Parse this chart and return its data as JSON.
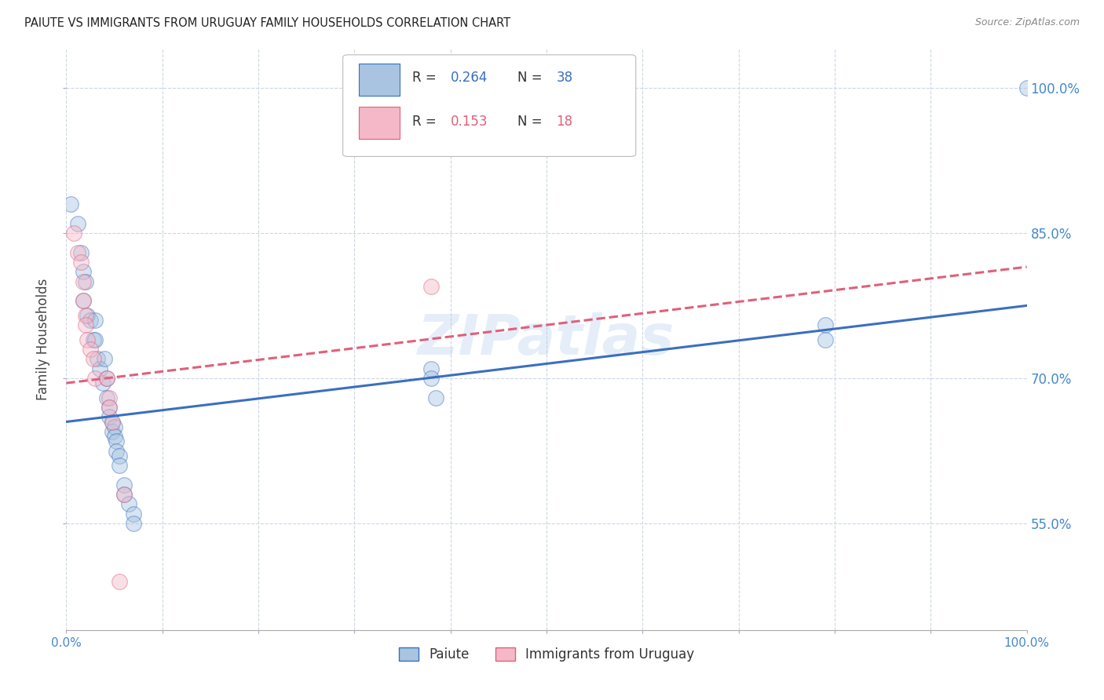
{
  "title": "PAIUTE VS IMMIGRANTS FROM URUGUAY FAMILY HOUSEHOLDS CORRELATION CHART",
  "source": "Source: ZipAtlas.com",
  "ylabel": "Family Households",
  "legend_r1": "R = 0.264",
  "legend_n1": "N = 38",
  "legend_r2": "R = 0.153",
  "legend_n2": "N = 18",
  "paiute_color": "#a8c4e0",
  "uruguay_color": "#f5b8c8",
  "line1_color": "#3a6fc0",
  "line2_color": "#e0607a",
  "watermark": "ZIPatlas",
  "paiute_points": [
    [
      0.005,
      0.88
    ],
    [
      0.012,
      0.86
    ],
    [
      0.015,
      0.83
    ],
    [
      0.018,
      0.81
    ],
    [
      0.018,
      0.78
    ],
    [
      0.02,
      0.8
    ],
    [
      0.022,
      0.765
    ],
    [
      0.025,
      0.76
    ],
    [
      0.028,
      0.74
    ],
    [
      0.03,
      0.76
    ],
    [
      0.03,
      0.74
    ],
    [
      0.032,
      0.72
    ],
    [
      0.035,
      0.71
    ],
    [
      0.038,
      0.695
    ],
    [
      0.04,
      0.72
    ],
    [
      0.042,
      0.7
    ],
    [
      0.042,
      0.68
    ],
    [
      0.045,
      0.67
    ],
    [
      0.045,
      0.66
    ],
    [
      0.048,
      0.655
    ],
    [
      0.048,
      0.645
    ],
    [
      0.05,
      0.65
    ],
    [
      0.05,
      0.64
    ],
    [
      0.052,
      0.635
    ],
    [
      0.052,
      0.625
    ],
    [
      0.055,
      0.62
    ],
    [
      0.055,
      0.61
    ],
    [
      0.06,
      0.59
    ],
    [
      0.06,
      0.58
    ],
    [
      0.065,
      0.57
    ],
    [
      0.07,
      0.56
    ],
    [
      0.07,
      0.55
    ],
    [
      0.38,
      0.71
    ],
    [
      0.38,
      0.7
    ],
    [
      0.385,
      0.68
    ],
    [
      0.79,
      0.755
    ],
    [
      0.79,
      0.74
    ],
    [
      1.0,
      1.0
    ]
  ],
  "uruguay_points": [
    [
      0.008,
      0.85
    ],
    [
      0.012,
      0.83
    ],
    [
      0.015,
      0.82
    ],
    [
      0.018,
      0.8
    ],
    [
      0.018,
      0.78
    ],
    [
      0.02,
      0.765
    ],
    [
      0.02,
      0.755
    ],
    [
      0.022,
      0.74
    ],
    [
      0.025,
      0.73
    ],
    [
      0.028,
      0.72
    ],
    [
      0.03,
      0.7
    ],
    [
      0.042,
      0.7
    ],
    [
      0.045,
      0.68
    ],
    [
      0.045,
      0.67
    ],
    [
      0.048,
      0.655
    ],
    [
      0.055,
      0.49
    ],
    [
      0.06,
      0.58
    ],
    [
      0.38,
      0.795
    ]
  ],
  "line1_x0": 0.0,
  "line1_y0": 0.655,
  "line1_x1": 1.0,
  "line1_y1": 0.775,
  "line2_x0": 0.0,
  "line2_y0": 0.695,
  "line2_x1": 1.0,
  "line2_y1": 0.815,
  "xlim": [
    0.0,
    1.0
  ],
  "ylim": [
    0.44,
    1.04
  ],
  "y_ticks": [
    0.55,
    0.7,
    0.85,
    1.0
  ],
  "x_tick_positions": [
    0.0,
    0.1,
    0.2,
    0.3,
    0.4,
    0.5,
    0.6,
    0.7,
    0.8,
    0.9,
    1.0
  ],
  "figsize": [
    14.06,
    8.92
  ],
  "dpi": 100,
  "grid_color": "#ccd6e8",
  "background_color": "#ffffff",
  "title_fontsize": 10.5,
  "tick_label_color": "#4488cc",
  "scatter_size": 200,
  "scatter_alpha": 0.45,
  "line_width": 2.2
}
